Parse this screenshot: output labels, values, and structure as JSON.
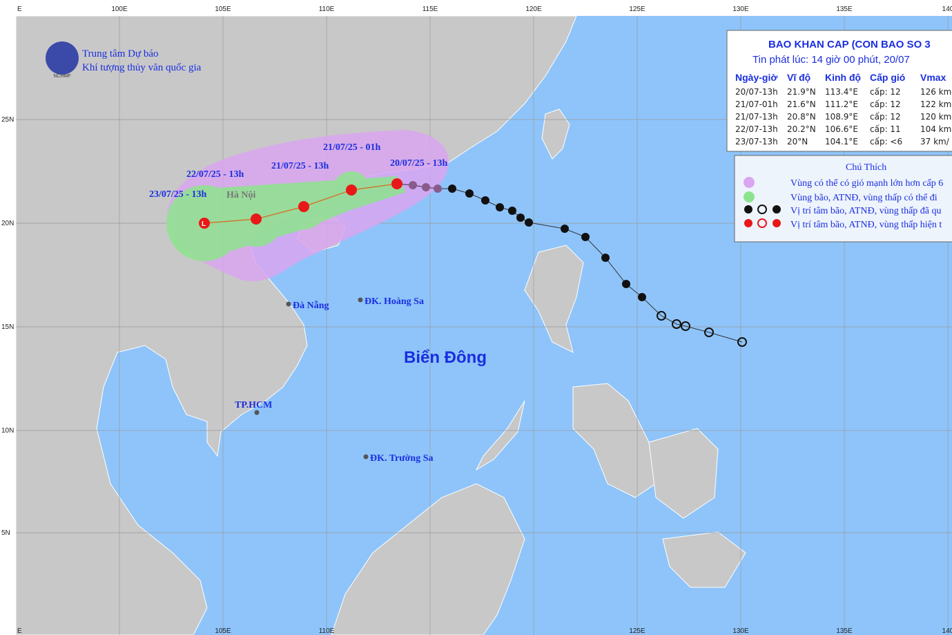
{
  "org": {
    "line1": "Trung tâm Dự báo",
    "line2": "Khí tượng thủy văn quốc gia",
    "logo": "NCHMF"
  },
  "lon_labels": [
    "E",
    "100E",
    "105E",
    "110E",
    "115E",
    "120E",
    "125E",
    "130E",
    "135E",
    "140"
  ],
  "bottom_lon_labels": [
    "E",
    "105E",
    "110E",
    "125E",
    "130E",
    "135E",
    "140"
  ],
  "lat_labels": [
    "25N",
    "20N",
    "15N",
    "10N",
    "5N"
  ],
  "places": {
    "hanoi": "Hà Nội",
    "danang": "Đà Nẵng",
    "hoangsa": "ĐK. Hoàng Sa",
    "hcm": "TP.HCM",
    "truongsa": "ĐK. Trường Sa",
    "sea": "Biển Đông"
  },
  "track_labels": [
    "20/07/25 - 13h",
    "21/07/25 - 01h",
    "21/07/25 - 13h",
    "22/07/25 - 13h",
    "23/07/25 - 13h"
  ],
  "table": {
    "title": "BAO KHAN CAP (CON BAO SO 3",
    "subtitle": "Tin phát lúc: 14 giờ 00 phút, 20/07",
    "header": [
      "Ngày-giờ",
      "Vĩ độ",
      "Kinh độ",
      "Cấp gió",
      "Vmax"
    ],
    "rows": [
      [
        "20/07-13h",
        "21.9°N",
        "113.4°E",
        "cấp: 12",
        "126 km"
      ],
      [
        "21/07-01h",
        "21.6°N",
        "111.2°E",
        "cấp: 12",
        "122 km"
      ],
      [
        "21/07-13h",
        "20.8°N",
        "108.9°E",
        "cấp: 12",
        "120 km"
      ],
      [
        "22/07-13h",
        "20.2°N",
        "106.6°E",
        "cấp: 11",
        "104 km"
      ],
      [
        "23/07-13h",
        "20°N",
        "104.1°E",
        "cấp: <6",
        "37 km/"
      ]
    ]
  },
  "legend": {
    "title": "Chú Thích",
    "items": [
      "Vùng có thể có gió mạnh lớn hơn cấp 6",
      "Vùng bão, ATNĐ, vùng thấp có thể đi",
      "Vị trí tâm bão, ATNĐ, vùng thấp đã qu",
      "Vị trí tâm bão, ATNĐ, vùng thấp hiện t"
    ]
  }
}
